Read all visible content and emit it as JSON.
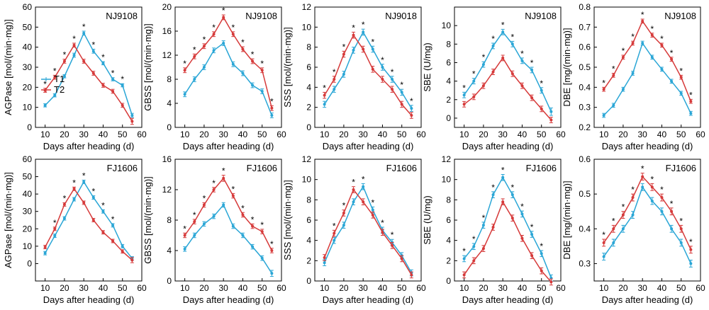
{
  "colors": {
    "T1": "#2aa6d6",
    "T2": "#d63a3a"
  },
  "xlabel": "Days after heading (d)",
  "legend": [
    "T1",
    "T2"
  ],
  "chart_data": [
    {
      "type": "line",
      "title": "NJ9108",
      "ylabel": "AGPase [mol/(min·mg)]",
      "xlim": [
        5,
        60
      ],
      "ylim": [
        0,
        60
      ],
      "yticks": [
        0,
        10,
        20,
        30,
        40,
        50,
        60
      ],
      "xticks": [
        10,
        20,
        30,
        40,
        50,
        60
      ],
      "x": [
        10,
        15,
        20,
        25,
        30,
        35,
        40,
        45,
        50,
        55
      ],
      "series": [
        {
          "name": "T1",
          "values": [
            11,
            16,
            25.5,
            36,
            47,
            38,
            32,
            24,
            21,
            6
          ],
          "err": [
            0.8,
            0.8,
            0.8,
            1,
            1,
            1,
            0.8,
            0.8,
            0.8,
            1
          ]
        },
        {
          "name": "T2",
          "values": [
            18.5,
            25,
            33,
            41,
            33,
            27,
            21,
            18,
            11,
            3
          ],
          "err": [
            1,
            1,
            1,
            1,
            1,
            1,
            1,
            1,
            1,
            1.5
          ]
        }
      ],
      "stars": [
        10,
        15,
        20,
        25,
        30,
        35,
        40,
        45,
        50
      ]
    },
    {
      "type": "line",
      "title": "NJ9108",
      "ylabel": "GBSS [mol/(min·mg)]",
      "xlim": [
        5,
        60
      ],
      "ylim": [
        0,
        20
      ],
      "yticks": [
        0,
        4,
        8,
        12,
        16,
        20
      ],
      "xticks": [
        10,
        20,
        30,
        40,
        50,
        60
      ],
      "x": [
        10,
        15,
        20,
        25,
        30,
        35,
        40,
        45,
        50,
        55
      ],
      "series": [
        {
          "name": "T1",
          "values": [
            5.5,
            8,
            10,
            12.8,
            14,
            10.5,
            9,
            7,
            6,
            2
          ],
          "err": [
            0.4,
            0.4,
            0.4,
            0.4,
            0.4,
            0.4,
            0.4,
            0.4,
            0.4,
            0.4
          ]
        },
        {
          "name": "T2",
          "values": [
            9.5,
            11.8,
            13.5,
            15.5,
            18.3,
            15.5,
            13,
            11,
            9.5,
            3.2
          ],
          "err": [
            0.4,
            0.4,
            0.4,
            0.4,
            0.4,
            0.4,
            0.4,
            0.4,
            0.4,
            0.4
          ]
        }
      ],
      "stars": [
        10,
        15,
        20,
        25,
        30,
        35,
        40,
        45,
        50,
        55
      ]
    },
    {
      "type": "line",
      "title": "NJ9018",
      "ylabel": "SSS [mol/(min·mg)]",
      "xlim": [
        5,
        60
      ],
      "ylim": [
        0,
        12
      ],
      "yticks": [
        0,
        2,
        4,
        6,
        8,
        10,
        12
      ],
      "xticks": [
        10,
        20,
        30,
        40,
        50,
        60
      ],
      "x": [
        10,
        15,
        20,
        25,
        30,
        35,
        40,
        45,
        50,
        55
      ],
      "series": [
        {
          "name": "T1",
          "values": [
            2.3,
            3.8,
            5.3,
            7.7,
            9.5,
            7.8,
            6,
            4.8,
            3.5,
            1.9
          ],
          "err": [
            0.3,
            0.3,
            0.3,
            0.3,
            0.3,
            0.3,
            0.3,
            0.3,
            0.3,
            0.3
          ]
        },
        {
          "name": "T2",
          "values": [
            3.2,
            4.8,
            7.3,
            9.2,
            7.8,
            5.8,
            4.8,
            3.8,
            2.3,
            1.2
          ],
          "err": [
            0.3,
            0.3,
            0.3,
            0.3,
            0.3,
            0.3,
            0.3,
            0.3,
            0.3,
            0.3
          ]
        }
      ],
      "stars": [
        10,
        15,
        20,
        25,
        30,
        35,
        40,
        45,
        50,
        55
      ]
    },
    {
      "type": "line",
      "title": "NJ9108",
      "ylabel": "SBE (U/mg)",
      "xlim": [
        5,
        60
      ],
      "ylim": [
        -1,
        12
      ],
      "yticks": [
        0,
        2,
        4,
        6,
        8,
        10
      ],
      "xticks": [
        10,
        20,
        30,
        40,
        50,
        60
      ],
      "x": [
        10,
        15,
        20,
        25,
        30,
        35,
        40,
        45,
        50,
        55
      ],
      "series": [
        {
          "name": "T1",
          "values": [
            2.5,
            4,
            5.8,
            7.8,
            9.3,
            8,
            6.2,
            5.2,
            3,
            0.7
          ],
          "err": [
            0.3,
            0.3,
            0.3,
            0.3,
            0.3,
            0.3,
            0.3,
            0.3,
            0.3,
            0.4
          ]
        },
        {
          "name": "T2",
          "values": [
            1.5,
            2.3,
            3.5,
            5,
            6.5,
            4.8,
            3.5,
            2.2,
            1,
            -0.2
          ],
          "err": [
            0.3,
            0.3,
            0.3,
            0.3,
            0.3,
            0.3,
            0.3,
            0.3,
            0.3,
            0.3
          ]
        }
      ],
      "stars": [
        10,
        15,
        20,
        25,
        30,
        35,
        40,
        45,
        50
      ]
    },
    {
      "type": "line",
      "title": "NJ9108",
      "ylabel": "DBE [mg/(min·mg)]",
      "xlim": [
        5,
        60
      ],
      "ylim": [
        0.2,
        0.8
      ],
      "yticks": [
        0.2,
        0.3,
        0.4,
        0.5,
        0.6,
        0.7,
        0.8
      ],
      "xticks": [
        10,
        20,
        30,
        40,
        50,
        60
      ],
      "x": [
        10,
        15,
        20,
        25,
        30,
        35,
        40,
        45,
        50,
        55
      ],
      "series": [
        {
          "name": "T1",
          "values": [
            0.26,
            0.31,
            0.39,
            0.47,
            0.62,
            0.55,
            0.49,
            0.43,
            0.37,
            0.27
          ],
          "err": [
            0.01,
            0.01,
            0.01,
            0.01,
            0.01,
            0.01,
            0.01,
            0.01,
            0.01,
            0.01
          ]
        },
        {
          "name": "T2",
          "values": [
            0.39,
            0.46,
            0.55,
            0.62,
            0.73,
            0.66,
            0.61,
            0.54,
            0.45,
            0.33
          ],
          "err": [
            0.01,
            0.01,
            0.01,
            0.01,
            0.01,
            0.01,
            0.01,
            0.01,
            0.01,
            0.01
          ]
        }
      ],
      "stars": [
        10,
        15,
        20,
        25,
        30,
        35,
        40,
        45,
        50,
        55
      ]
    },
    {
      "type": "line",
      "title": "FJ1606",
      "ylabel": "AGPase [mol/(min·mg)]",
      "xlim": [
        5,
        60
      ],
      "ylim": [
        -10,
        60
      ],
      "yticks": [
        0,
        10,
        20,
        30,
        40,
        50,
        60
      ],
      "xticks": [
        10,
        20,
        30,
        40,
        50,
        60
      ],
      "x": [
        10,
        15,
        20,
        25,
        30,
        35,
        40,
        45,
        50,
        55
      ],
      "series": [
        {
          "name": "T1",
          "values": [
            6,
            16,
            26,
            37,
            47,
            38,
            30,
            22,
            10,
            3
          ],
          "err": [
            1,
            1,
            1,
            1,
            1,
            1,
            1,
            1,
            1,
            1
          ]
        },
        {
          "name": "T2",
          "values": [
            9.5,
            20,
            34,
            43,
            35,
            25,
            18,
            13,
            7,
            2
          ],
          "err": [
            1,
            1,
            1,
            1,
            1,
            1,
            1,
            1,
            1,
            1.5
          ]
        }
      ],
      "stars": [
        15,
        20,
        25,
        30,
        35,
        40,
        45
      ]
    },
    {
      "type": "line",
      "title": "FJ1606",
      "ylabel": "GBSS [mol/(min·mg)]",
      "xlim": [
        5,
        60
      ],
      "ylim": [
        0,
        16
      ],
      "yticks": [
        0,
        4,
        8,
        12,
        16
      ],
      "xticks": [
        10,
        20,
        30,
        40,
        50,
        60
      ],
      "x": [
        10,
        15,
        20,
        25,
        30,
        35,
        40,
        45,
        50,
        55
      ],
      "series": [
        {
          "name": "T1",
          "values": [
            4.2,
            6,
            7.5,
            8.5,
            10,
            7.2,
            6,
            4.5,
            3,
            1
          ],
          "err": [
            0.3,
            0.3,
            0.3,
            0.3,
            0.3,
            0.3,
            0.3,
            0.3,
            0.3,
            0.4
          ]
        },
        {
          "name": "T2",
          "values": [
            6,
            7.8,
            10,
            12,
            13.5,
            11.2,
            8.7,
            7.2,
            6.5,
            4
          ],
          "err": [
            0.3,
            0.3,
            0.3,
            0.3,
            0.4,
            0.3,
            0.3,
            0.3,
            0.3,
            0.3
          ]
        }
      ],
      "stars": [
        10,
        15,
        20,
        25,
        30,
        35,
        40,
        45,
        50,
        55
      ]
    },
    {
      "type": "line",
      "title": "FJ1606",
      "ylabel": "SSS [mol/(min·mg)]",
      "xlim": [
        5,
        60
      ],
      "ylim": [
        0,
        12
      ],
      "yticks": [
        0,
        2,
        4,
        6,
        8,
        10,
        12
      ],
      "xticks": [
        10,
        20,
        30,
        40,
        50,
        60
      ],
      "x": [
        10,
        15,
        20,
        25,
        30,
        35,
        40,
        45,
        50,
        55
      ],
      "series": [
        {
          "name": "T1",
          "values": [
            1.8,
            4,
            5.5,
            7.8,
            9.3,
            7,
            5,
            3.8,
            2.5,
            0.8
          ],
          "err": [
            0.3,
            0.3,
            0.3,
            0.3,
            0.3,
            0.3,
            0.3,
            0.3,
            0.3,
            0.3
          ]
        },
        {
          "name": "T2",
          "values": [
            2.3,
            4.7,
            6.7,
            9,
            7.8,
            6.5,
            4.8,
            3.5,
            2.2,
            0.6
          ],
          "err": [
            0.3,
            0.3,
            0.3,
            0.3,
            0.3,
            0.3,
            0.3,
            0.3,
            0.3,
            0.3
          ]
        }
      ],
      "stars": [
        15,
        20,
        25,
        30,
        35,
        40,
        45
      ]
    },
    {
      "type": "line",
      "title": "FJ1606",
      "ylabel": "SBE (U/mg)",
      "xlim": [
        5,
        60
      ],
      "ylim": [
        0,
        12
      ],
      "yticks": [
        0,
        2,
        4,
        6,
        8,
        10,
        12
      ],
      "xticks": [
        10,
        20,
        30,
        40,
        50,
        60
      ],
      "x": [
        10,
        15,
        20,
        25,
        30,
        35,
        40,
        45,
        50,
        55
      ],
      "series": [
        {
          "name": "T1",
          "values": [
            2.2,
            3.4,
            5.5,
            8.5,
            10.2,
            8.5,
            6.6,
            4.6,
            2.7,
            0.3
          ],
          "err": [
            0.3,
            0.3,
            0.3,
            0.3,
            0.3,
            0.3,
            0.3,
            0.3,
            0.3,
            0.3
          ]
        },
        {
          "name": "T2",
          "values": [
            0.6,
            2,
            3.2,
            5.3,
            7.8,
            6.2,
            4.2,
            2.5,
            1,
            -0.1
          ],
          "err": [
            0.3,
            0.3,
            0.3,
            0.3,
            0.3,
            0.3,
            0.3,
            0.3,
            0.3,
            0.3
          ]
        }
      ],
      "stars": [
        10,
        15,
        20,
        25,
        30,
        35,
        40,
        45,
        50
      ]
    },
    {
      "type": "line",
      "title": "FJ1606",
      "ylabel": "DBE [mg/(min·mg)]",
      "xlim": [
        5,
        60
      ],
      "ylim": [
        0.25,
        0.6
      ],
      "yticks": [
        0.3,
        0.4,
        0.5,
        0.6
      ],
      "xticks": [
        10,
        20,
        30,
        40,
        50,
        60
      ],
      "x": [
        10,
        15,
        20,
        25,
        30,
        35,
        40,
        45,
        50,
        55
      ],
      "series": [
        {
          "name": "T1",
          "values": [
            0.32,
            0.36,
            0.4,
            0.44,
            0.52,
            0.48,
            0.45,
            0.4,
            0.36,
            0.3
          ],
          "err": [
            0.01,
            0.01,
            0.01,
            0.01,
            0.01,
            0.01,
            0.01,
            0.01,
            0.01,
            0.01
          ]
        },
        {
          "name": "T2",
          "values": [
            0.36,
            0.4,
            0.44,
            0.49,
            0.55,
            0.52,
            0.49,
            0.45,
            0.4,
            0.34
          ],
          "err": [
            0.01,
            0.01,
            0.01,
            0.01,
            0.01,
            0.01,
            0.01,
            0.01,
            0.01,
            0.01
          ]
        }
      ],
      "stars": [
        10,
        15,
        20,
        25,
        30,
        35,
        40,
        45,
        50,
        55
      ]
    }
  ]
}
